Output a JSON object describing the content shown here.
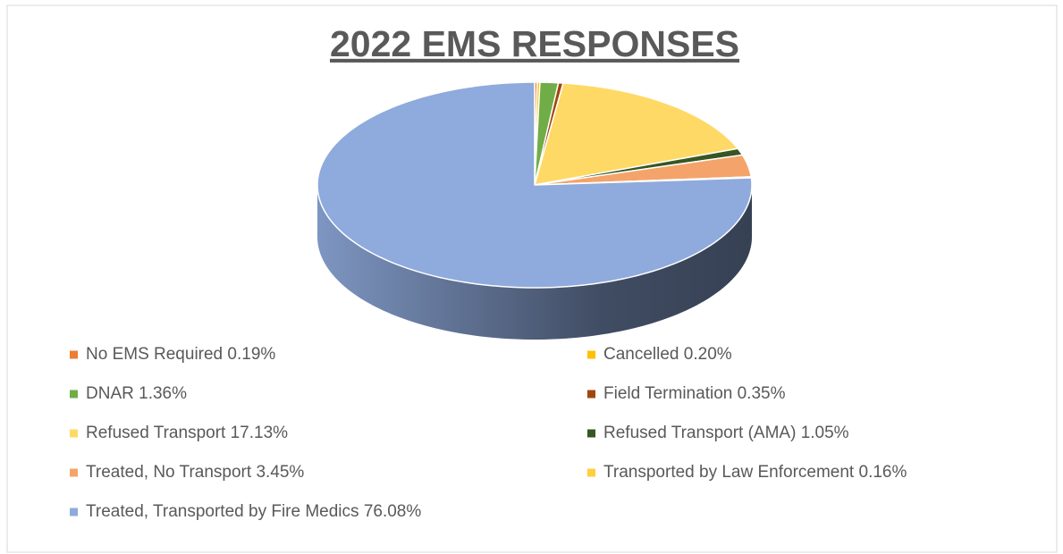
{
  "chart_data": {
    "type": "pie",
    "title": "2022 EMS RESPONSES",
    "legend": "bottom",
    "categories": [
      "No EMS Required",
      "Cancelled",
      "DNAR",
      "Field Termination",
      "Refused Transport",
      "Refused Transport (AMA)",
      "Treated, No Transport",
      "Transported by Law Enforcement",
      "Treated, Transported by Fire Medics"
    ],
    "values": [
      0.19,
      0.2,
      1.36,
      0.35,
      17.13,
      1.05,
      3.45,
      0.16,
      76.08
    ],
    "value_labels": [
      "0.19%",
      "0.20%",
      "1.36%",
      "0.35%",
      "17.13%",
      "1.05%",
      "3.45%",
      "0.16%",
      "76.08%"
    ],
    "colors": [
      "#ED7D31",
      "#FFC000",
      "#70AD47",
      "#9E480E",
      "#FFD966",
      "#375623",
      "#F4A46A",
      "#FFCF3F",
      "#8FAADC"
    ]
  }
}
